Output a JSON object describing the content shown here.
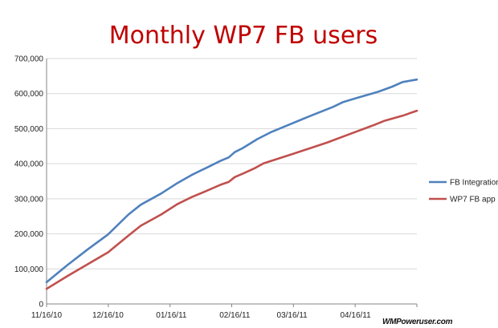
{
  "chart_data": {
    "type": "line",
    "title": "Monthly WP7 FB users",
    "xlabel": "",
    "ylabel": "",
    "ylim": [
      0,
      700000
    ],
    "y_ticks": [
      "0",
      "100,000",
      "200,000",
      "300,000",
      "400,000",
      "500,000",
      "600,000",
      "700,000"
    ],
    "x_range": [
      "2010-11-16",
      "2011-05-16"
    ],
    "x_ticks": [
      {
        "label": "11/16/10",
        "date": "2010-11-16"
      },
      {
        "label": "12/16/10",
        "date": "2010-12-16"
      },
      {
        "label": "01/16/11",
        "date": "2011-01-16"
      },
      {
        "label": "02/16/11",
        "date": "2011-02-16"
      },
      {
        "label": "03/16/11",
        "date": "2011-03-16"
      },
      {
        "label": "04/16/11",
        "date": "2011-04-16"
      }
    ],
    "grid": "horizontal",
    "legend_position": "right",
    "series": [
      {
        "name": "FB Integration",
        "color": "#4F81BD",
        "points": [
          [
            "2010-11-16",
            62000
          ],
          [
            "2010-11-26",
            110000
          ],
          [
            "2010-12-06",
            155000
          ],
          [
            "2010-12-16",
            198000
          ],
          [
            "2010-12-26",
            255000
          ],
          [
            "2011-01-01",
            283000
          ],
          [
            "2011-01-11",
            315000
          ],
          [
            "2011-01-19",
            345000
          ],
          [
            "2011-01-26",
            368000
          ],
          [
            "2011-02-02",
            388000
          ],
          [
            "2011-02-09",
            408000
          ],
          [
            "2011-02-13",
            418000
          ],
          [
            "2011-02-16",
            433000
          ],
          [
            "2011-02-20",
            445000
          ],
          [
            "2011-02-27",
            470000
          ],
          [
            "2011-03-06",
            491000
          ],
          [
            "2011-03-16",
            515000
          ],
          [
            "2011-03-26",
            539000
          ],
          [
            "2011-04-05",
            562000
          ],
          [
            "2011-04-10",
            576000
          ],
          [
            "2011-04-18",
            590000
          ],
          [
            "2011-04-27",
            605000
          ],
          [
            "2011-05-04",
            620000
          ],
          [
            "2011-05-09",
            633000
          ],
          [
            "2011-05-16",
            640000
          ]
        ]
      },
      {
        "name": "WP7 FB app",
        "color": "#C0504D",
        "points": [
          [
            "2010-11-16",
            43000
          ],
          [
            "2010-11-26",
            79000
          ],
          [
            "2010-12-06",
            113000
          ],
          [
            "2010-12-16",
            147000
          ],
          [
            "2010-12-26",
            195000
          ],
          [
            "2011-01-01",
            223000
          ],
          [
            "2011-01-11",
            255000
          ],
          [
            "2011-01-19",
            285000
          ],
          [
            "2011-01-26",
            305000
          ],
          [
            "2011-02-02",
            322000
          ],
          [
            "2011-02-09",
            340000
          ],
          [
            "2011-02-13",
            348000
          ],
          [
            "2011-02-16",
            362000
          ],
          [
            "2011-02-20",
            372000
          ],
          [
            "2011-02-26",
            388000
          ],
          [
            "2011-03-02",
            401000
          ],
          [
            "2011-03-16",
            427000
          ],
          [
            "2011-04-02",
            460000
          ],
          [
            "2011-04-12",
            482000
          ],
          [
            "2011-04-24",
            508000
          ],
          [
            "2011-04-30",
            522000
          ],
          [
            "2011-05-09",
            537000
          ],
          [
            "2011-05-16",
            551000
          ]
        ]
      }
    ]
  },
  "watermark": "WMPoweruser.com",
  "colors": {
    "title": "#C00000",
    "gridline": "#D9D9D9",
    "axis": "#868686",
    "text": "#222222"
  }
}
